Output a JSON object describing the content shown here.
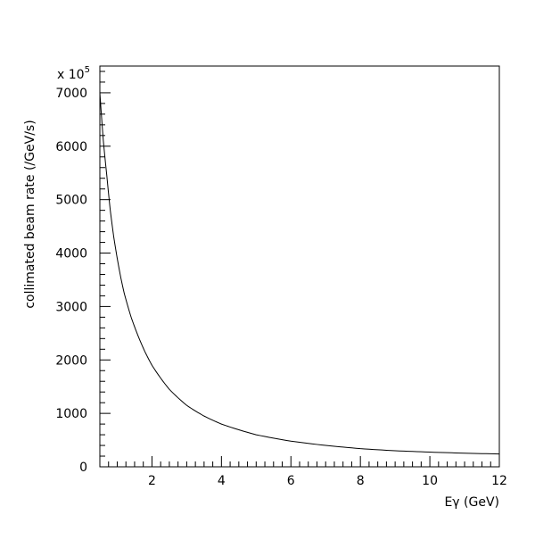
{
  "chart_data": {
    "type": "line",
    "title": "",
    "xlabel": "Eγ (GeV)",
    "ylabel": "collimated beam rate (/GeV/s)",
    "y_multiplier_label": "x 10",
    "y_multiplier_exponent": "5",
    "xlim": [
      0.5,
      12
    ],
    "ylim": [
      0,
      7500
    ],
    "x_ticks": [
      2,
      4,
      6,
      8,
      10,
      12
    ],
    "x_tick_labels": [
      "2",
      "4",
      "6",
      "8",
      "10",
      "12"
    ],
    "y_ticks": [
      0,
      1000,
      2000,
      3000,
      4000,
      5000,
      6000,
      7000
    ],
    "y_tick_labels": [
      "0",
      "1000",
      "2000",
      "3000",
      "4000",
      "5000",
      "6000",
      "7000"
    ],
    "grid": false,
    "line_color": "#000000",
    "series": [
      {
        "x": [
          0.5,
          0.6,
          0.7,
          0.8,
          0.9,
          1.0,
          1.1,
          1.2,
          1.4,
          1.6,
          1.8,
          2.0,
          2.5,
          3.0,
          3.5,
          4.0,
          5.0,
          6.0,
          7.0,
          8.0,
          9.0,
          10.0,
          11.0,
          12.0
        ],
        "y": [
          7000,
          6100,
          5450,
          4800,
          4300,
          3900,
          3550,
          3250,
          2800,
          2450,
          2150,
          1900,
          1450,
          1150,
          950,
          800,
          600,
          480,
          400,
          340,
          300,
          275,
          255,
          240
        ]
      }
    ]
  }
}
